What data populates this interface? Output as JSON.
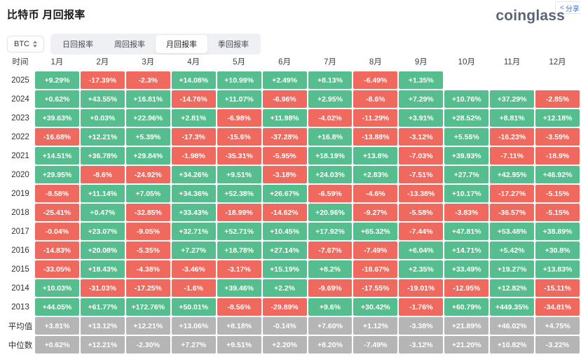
{
  "page": {
    "title": "比特币 月回报率",
    "logo": "coinglass",
    "share_label": "分享",
    "share_icon_glyph": "<"
  },
  "controls": {
    "coin_selector": {
      "label": "BTC",
      "icon": "sort-caret-updown-icon"
    },
    "tabs": [
      {
        "label": "日回报率",
        "active": false
      },
      {
        "label": "周回报率",
        "active": false
      },
      {
        "label": "月回报率",
        "active": true
      },
      {
        "label": "季回报率",
        "active": false
      }
    ]
  },
  "colors": {
    "positive": "#56be8e",
    "negative": "#f0695f",
    "summary": "#b5b5b5",
    "accent_blue": "#3e6fd8"
  },
  "chart_data": {
    "type": "heatmap",
    "title": "比特币 月回报率",
    "row_header": "时间",
    "x_categories": [
      "1月",
      "2月",
      "3月",
      "4月",
      "5月",
      "6月",
      "7月",
      "8月",
      "9月",
      "10月",
      "11月",
      "12月"
    ],
    "value_unit": "%",
    "legend": "green = positive monthly return, red = negative, gray = summary rows",
    "rows": [
      {
        "label": "2025",
        "kind": "year",
        "values": [
          "+9.29%",
          "-17.39%",
          "-2.3%",
          "+14.08%",
          "+10.99%",
          "+2.49%",
          "+8.13%",
          "-6.49%",
          "+1.35%",
          null,
          null,
          null
        ]
      },
      {
        "label": "2024",
        "kind": "year",
        "values": [
          "+0.62%",
          "+43.55%",
          "+16.81%",
          "-14.76%",
          "+11.07%",
          "-6.96%",
          "+2.95%",
          "-8.6%",
          "+7.29%",
          "+10.76%",
          "+37.29%",
          "-2.85%"
        ]
      },
      {
        "label": "2023",
        "kind": "year",
        "values": [
          "+39.63%",
          "+0.03%",
          "+22.96%",
          "+2.81%",
          "-6.98%",
          "+11.98%",
          "-4.02%",
          "-11.29%",
          "+3.91%",
          "+28.52%",
          "+8.81%",
          "+12.18%"
        ]
      },
      {
        "label": "2022",
        "kind": "year",
        "values": [
          "-16.68%",
          "+12.21%",
          "+5.39%",
          "-17.3%",
          "-15.6%",
          "-37.28%",
          "+16.8%",
          "-13.88%",
          "-3.12%",
          "+5.56%",
          "-16.23%",
          "-3.59%"
        ]
      },
      {
        "label": "2021",
        "kind": "year",
        "values": [
          "+14.51%",
          "+36.78%",
          "+29.84%",
          "-1.98%",
          "-35.31%",
          "-5.95%",
          "+18.19%",
          "+13.8%",
          "-7.03%",
          "+39.93%",
          "-7.11%",
          "-18.9%"
        ]
      },
      {
        "label": "2020",
        "kind": "year",
        "values": [
          "+29.95%",
          "-8.6%",
          "-24.92%",
          "+34.26%",
          "+9.51%",
          "-3.18%",
          "+24.03%",
          "+2.83%",
          "-7.51%",
          "+27.7%",
          "+42.95%",
          "+46.92%"
        ]
      },
      {
        "label": "2019",
        "kind": "year",
        "values": [
          "-8.58%",
          "+11.14%",
          "+7.05%",
          "+34.36%",
          "+52.38%",
          "+26.67%",
          "-6.59%",
          "-4.6%",
          "-13.38%",
          "+10.17%",
          "-17.27%",
          "-5.15%"
        ]
      },
      {
        "label": "2018",
        "kind": "year",
        "values": [
          "-25.41%",
          "+0.47%",
          "-32.85%",
          "+33.43%",
          "-18.99%",
          "-14.62%",
          "+20.96%",
          "-9.27%",
          "-5.58%",
          "-3.83%",
          "-36.57%",
          "-5.15%"
        ]
      },
      {
        "label": "2017",
        "kind": "year",
        "values": [
          "-0.04%",
          "+23.07%",
          "-9.05%",
          "+32.71%",
          "+52.71%",
          "+10.45%",
          "+17.92%",
          "+65.32%",
          "-7.44%",
          "+47.81%",
          "+53.48%",
          "+38.89%"
        ]
      },
      {
        "label": "2016",
        "kind": "year",
        "values": [
          "-14.83%",
          "+20.08%",
          "-5.35%",
          "+7.27%",
          "+18.78%",
          "+27.14%",
          "-7.67%",
          "-7.49%",
          "+6.04%",
          "+14.71%",
          "+5.42%",
          "+30.8%"
        ]
      },
      {
        "label": "2015",
        "kind": "year",
        "values": [
          "-33.05%",
          "+18.43%",
          "-4.38%",
          "-3.46%",
          "-3.17%",
          "+15.19%",
          "+8.2%",
          "-18.67%",
          "+2.35%",
          "+33.49%",
          "+19.27%",
          "+13.83%"
        ]
      },
      {
        "label": "2014",
        "kind": "year",
        "values": [
          "+10.03%",
          "-31.03%",
          "-17.25%",
          "-1.6%",
          "+39.46%",
          "+2.2%",
          "-9.69%",
          "-17.55%",
          "-19.01%",
          "-12.95%",
          "+12.82%",
          "-15.11%"
        ]
      },
      {
        "label": "2013",
        "kind": "year",
        "values": [
          "+44.05%",
          "+61.77%",
          "+172.76%",
          "+50.01%",
          "-8.56%",
          "-29.89%",
          "+9.6%",
          "+30.42%",
          "-1.76%",
          "+60.79%",
          "+449.35%",
          "-34.81%"
        ]
      },
      {
        "label": "平均值",
        "kind": "summary",
        "values": [
          "+3.81%",
          "+13.12%",
          "+12.21%",
          "+13.06%",
          "+8.18%",
          "-0.14%",
          "+7.60%",
          "+1.12%",
          "-3.38%",
          "+21.89%",
          "+46.02%",
          "+4.75%"
        ]
      },
      {
        "label": "中位数",
        "kind": "summary",
        "values": [
          "+0.62%",
          "+12.21%",
          "-2.30%",
          "+7.27%",
          "+9.51%",
          "+2.20%",
          "+8.20%",
          "-7.49%",
          "-3.12%",
          "+21.20%",
          "+10.82%",
          "-3.22%"
        ]
      }
    ]
  }
}
